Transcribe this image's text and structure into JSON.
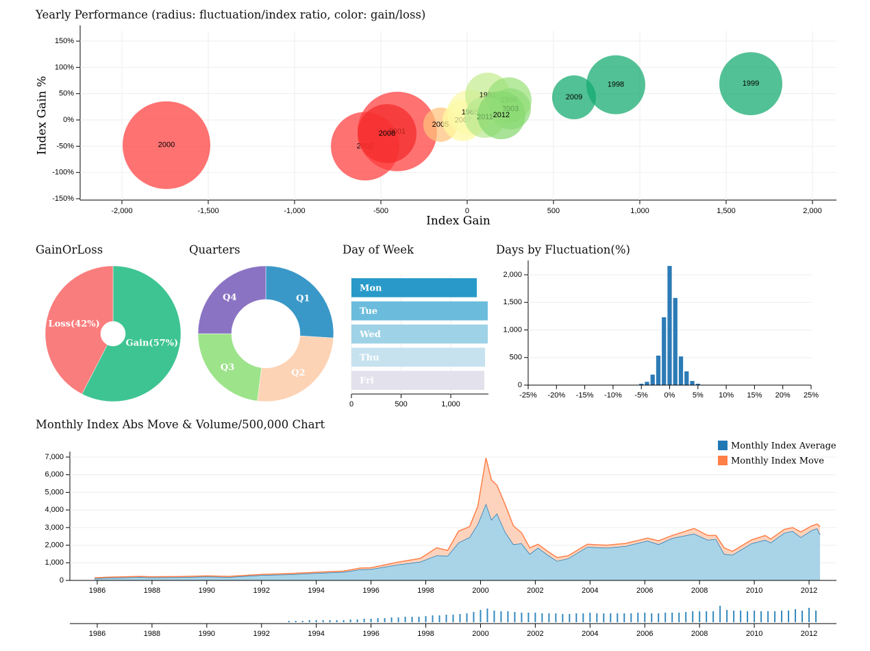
{
  "chart_data": [
    {
      "type": "bubble",
      "title": "Yearly Performance (radius: fluctuation/index ratio, color: gain/loss)",
      "x_label": "Index Gain",
      "y_label": "Index Gain %",
      "labels": [
        "2000",
        "2002",
        "2001",
        "2008",
        "2005",
        "2007",
        "1985",
        "1991",
        "1996",
        "2003",
        "2011",
        "2012",
        "2009",
        "1998",
        "1999"
      ],
      "x": [
        -1742,
        -591,
        -405,
        -464,
        -155,
        -24,
        16,
        119,
        242,
        250,
        103,
        198,
        619,
        861,
        1643
      ],
      "values": [
        -48,
        -50,
        -22,
        -26,
        -9,
        -1,
        14,
        47,
        38,
        21,
        5,
        9,
        43,
        67,
        69
      ],
      "sizes": [
        64,
        50,
        58,
        43,
        25,
        30,
        33,
        33,
        33,
        30,
        30,
        35,
        32,
        43,
        46
      ],
      "colors": [
        "#ff3b3b",
        "#ff3b3b",
        "#ff3b3b",
        "#f42a2a",
        "#ffc27a",
        "#fffaa0",
        "#fbf9a8",
        "#c5ec90",
        "#9be07a",
        "#8fdc78",
        "#b8e890",
        "#86d870",
        "#10a96e",
        "#10a96e",
        "#10a96e"
      ],
      "xlim": [
        -2242,
        2139
      ],
      "xticks": [
        {
          "value": -2000,
          "label": "-2,000"
        },
        {
          "value": -1500,
          "label": "-1,500"
        },
        {
          "value": -1000,
          "label": "-1,000"
        },
        -500,
        0,
        500,
        {
          "value": 1000,
          "label": "1,000"
        },
        {
          "value": 1500,
          "label": "1,500"
        },
        {
          "value": 2000,
          "label": "2,000"
        }
      ],
      "ylim": [
        -152.6,
        169.6
      ],
      "yticks": [
        {
          "value": -150,
          "label": "-150%"
        },
        {
          "value": -100,
          "label": "-100%"
        },
        {
          "value": -50,
          "label": "-50%"
        },
        {
          "value": 0,
          "label": "0%"
        },
        {
          "value": 50,
          "label": "50%"
        },
        {
          "value": 100,
          "label": "100%"
        },
        {
          "value": 150,
          "label": "150%"
        }
      ],
      "grid": true
    },
    {
      "type": "pie",
      "title": "GainOrLoss",
      "values": [
        57,
        42
      ],
      "value_labels": [
        "Gain(57%)",
        "Loss(42%)"
      ],
      "colors": [
        "#3ec492",
        "#fa7d7d"
      ]
    },
    {
      "type": "pie",
      "title": "Quarters",
      "categories": [
        "Q1",
        "Q2",
        "Q3",
        "Q4"
      ],
      "values": [
        26,
        26,
        23,
        25
      ],
      "colors": [
        "#3a98c8",
        "#fdd3b5",
        "#9de38a",
        "#8b73c3"
      ]
    },
    {
      "type": "row",
      "title": "Day of Week",
      "categories": [
        "Mon",
        "Tue",
        "Wed",
        "Thu",
        "Fri"
      ],
      "values": [
        1262,
        1372,
        1372,
        1345,
        1338
      ],
      "colors": [
        "#2899c9",
        "#6bbcdc",
        "#9ed2e6",
        "#c7e2ef",
        "#e3e1ec"
      ],
      "xlim": [
        0,
        1379
      ],
      "xticks": [
        0,
        500,
        {
          "value": 1000,
          "label": "1,000"
        }
      ],
      "grid": true
    },
    {
      "type": "histogram",
      "title": "Days by Fluctuation(%)",
      "bins": [
        -5.5,
        -4.5,
        -3.5,
        -2.5,
        -1.5,
        -0.5,
        0.5,
        1.5,
        2.5,
        3.5,
        4.5,
        5.5
      ],
      "values": [
        25,
        60,
        190,
        535,
        1230,
        2160,
        1580,
        520,
        250,
        75,
        25
      ],
      "color": "#2c7bb6",
      "xlim": [
        -25,
        25
      ],
      "xticks": [
        {
          "value": -25,
          "label": "-25%"
        },
        {
          "value": -20,
          "label": "-20%"
        },
        {
          "value": -15,
          "label": "-15%"
        },
        {
          "value": -10,
          "label": "-10%"
        },
        {
          "value": -5,
          "label": "-5%"
        },
        {
          "value": 0,
          "label": "0%"
        },
        {
          "value": 5,
          "label": "5%"
        },
        {
          "value": 10,
          "label": "10%"
        },
        {
          "value": 15,
          "label": "15%"
        },
        {
          "value": 20,
          "label": "20%"
        },
        {
          "value": 25,
          "label": "25%"
        }
      ],
      "ylim": [
        0,
        2161
      ],
      "yticks": [
        0,
        500,
        {
          "value": 1000,
          "label": "1,000"
        },
        {
          "value": 1500,
          "label": "1,500"
        },
        {
          "value": 2000,
          "label": "2,000"
        }
      ],
      "grid": true
    },
    {
      "type": "area",
      "title": "Monthly Index Abs Move & Volume/500,000 Chart",
      "stacked": true,
      "legend": "top-right",
      "grid": true,
      "x": [
        1985.9,
        1986.5,
        1987.6,
        1987.9,
        1989,
        1990,
        1990.8,
        1992,
        1993,
        1994,
        1995,
        1995.6,
        1996,
        1997,
        1997.8,
        1998.4,
        1998.8,
        1999.2,
        1999.6,
        1999.9,
        2000.2,
        2000.4,
        2000.6,
        2000.9,
        2001.2,
        2001.5,
        2001.8,
        2002.1,
        2002.5,
        2002.8,
        2003.2,
        2003.9,
        2004.6,
        2005.3,
        2006.1,
        2006.5,
        2007,
        2007.8,
        2008.3,
        2008.6,
        2008.9,
        2009.2,
        2009.9,
        2010.4,
        2010.6,
        2011.1,
        2011.4,
        2011.7,
        2012.1,
        2012.3,
        2012.4
      ],
      "series": [
        {
          "name": "Monthly Index Average",
          "color": "#1f78b4",
          "fill": "#a9d4e7",
          "values": [
            120,
            150,
            190,
            170,
            180,
            220,
            190,
            300,
            340,
            420,
            480,
            620,
            640,
            900,
            1060,
            1420,
            1400,
            2150,
            2450,
            3200,
            4350,
            3450,
            3800,
            2750,
            2050,
            2100,
            1500,
            1850,
            1400,
            1100,
            1250,
            1900,
            1850,
            1950,
            2250,
            2050,
            2400,
            2650,
            2300,
            2350,
            1500,
            1450,
            2100,
            2300,
            2150,
            2700,
            2800,
            2450,
            2850,
            2950,
            2600
          ]
        },
        {
          "name": "Monthly Index Move",
          "color": "#ff7f47",
          "fill": "#fdd3bd",
          "values": [
            30,
            40,
            40,
            40,
            40,
            40,
            40,
            40,
            50,
            40,
            50,
            80,
            80,
            140,
            190,
            430,
            300,
            650,
            600,
            1000,
            2600,
            2250,
            1600,
            1550,
            1050,
            600,
            350,
            200,
            200,
            200,
            150,
            150,
            150,
            150,
            150,
            200,
            150,
            300,
            250,
            200,
            350,
            200,
            200,
            250,
            200,
            200,
            200,
            300,
            250,
            250,
            450
          ]
        }
      ],
      "xlim": [
        1985,
        2013
      ],
      "xticks": [
        1986,
        1988,
        1990,
        1992,
        1994,
        1996,
        1998,
        2000,
        2002,
        2004,
        2006,
        2008,
        2010,
        2012
      ],
      "ylim": [
        0,
        7000
      ],
      "yticks": [
        0,
        {
          "value": 1000,
          "label": "1,000"
        },
        {
          "value": 2000,
          "label": "2,000"
        },
        {
          "value": 3000,
          "label": "3,000"
        },
        {
          "value": 4000,
          "label": "4,000"
        },
        {
          "value": 5000,
          "label": "5,000"
        },
        {
          "value": 6000,
          "label": "6,000"
        },
        {
          "value": 7000,
          "label": "7,000"
        }
      ]
    },
    {
      "type": "bar",
      "color": "#3288bd",
      "x": [
        1993,
        1993.25,
        1993.5,
        1993.75,
        1994,
        1994.25,
        1994.5,
        1994.75,
        1995,
        1995.25,
        1995.5,
        1995.75,
        1996,
        1996.25,
        1996.5,
        1996.75,
        1997,
        1997.25,
        1997.5,
        1997.75,
        1998,
        1998.25,
        1998.5,
        1998.75,
        1999,
        1999.25,
        1999.5,
        1999.75,
        2000,
        2000.25,
        2000.5,
        2000.75,
        2001,
        2001.25,
        2001.5,
        2001.75,
        2002,
        2002.25,
        2002.5,
        2002.75,
        2003,
        2003.25,
        2003.5,
        2003.75,
        2004,
        2004.25,
        2004.5,
        2004.75,
        2005,
        2005.25,
        2005.5,
        2005.75,
        2006,
        2006.25,
        2006.5,
        2006.75,
        2007,
        2007.25,
        2007.5,
        2007.75,
        2008,
        2008.25,
        2008.5,
        2008.75,
        2009,
        2009.25,
        2009.5,
        2009.75,
        2010,
        2010.25,
        2010.5,
        2010.75,
        2011,
        2011.25,
        2011.5,
        2011.75,
        2012,
        2012.25
      ],
      "values": [
        2,
        2,
        2,
        3,
        3,
        3,
        3,
        3,
        3,
        4,
        4,
        5,
        5,
        6,
        6,
        7,
        7,
        8,
        8,
        8,
        9,
        10,
        10,
        11,
        11,
        12,
        13,
        15,
        18,
        20,
        17,
        16,
        16,
        15,
        14,
        14,
        14,
        13,
        13,
        13,
        12,
        12,
        13,
        13,
        14,
        13,
        13,
        13,
        13,
        13,
        13,
        14,
        14,
        13,
        13,
        14,
        14,
        14,
        15,
        16,
        16,
        16,
        16,
        24,
        18,
        17,
        17,
        16,
        17,
        16,
        16,
        16,
        17,
        17,
        19,
        17,
        21,
        17
      ],
      "xlim": [
        1985,
        2013
      ],
      "ylim": [
        0,
        30
      ],
      "xticks": [
        1986,
        1988,
        1990,
        1992,
        1994,
        1996,
        1998,
        2000,
        2002,
        2004,
        2006,
        2008,
        2010,
        2012
      ]
    }
  ]
}
